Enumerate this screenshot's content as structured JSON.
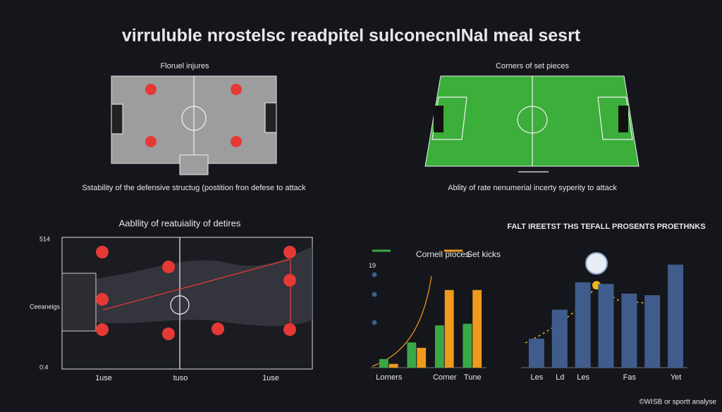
{
  "title": "virruluble nrostelsc readpitel sulconecnINal meal sesrt",
  "pitch_left": {
    "title": "Floruel injures",
    "caption": "Sstability of the defensive structug (postition fron defese to attack"
  },
  "pitch_right": {
    "title": "Corners of set pieces",
    "caption": "Ablity of rate nenumerial incerty syperity to attack"
  },
  "field_panel": {
    "title": "Aabllity of reatuiality of detires",
    "y_top": "514",
    "y_mid": "Ceeaneigs",
    "y_bottom": "0:4",
    "x_labels": [
      "1use",
      "tuso",
      "1use"
    ]
  },
  "chart_data": [
    {
      "type": "bar",
      "categories": [
        "Lorners",
        null,
        "Corner",
        "Tune"
      ],
      "series": [
        {
          "name": "Cornell ploces",
          "color": "#3aa845",
          "values": [
            1.6,
            4.7,
            7.9,
            8.2
          ]
        },
        {
          "name": "Set kicks",
          "color": "#f09a1c",
          "values": [
            0.7,
            3.7,
            14.5,
            14.5
          ]
        }
      ],
      "ylim": [
        0,
        20
      ],
      "yticks": [
        19
      ]
    },
    {
      "type": "bar",
      "title": "FALT IREETST THS TEFALL PROSENTS PROETHNKS",
      "categories": [
        "Les",
        "Ld",
        "Les",
        null,
        "Fas",
        null,
        "Yet"
      ],
      "values": [
        36,
        72,
        106,
        104,
        92,
        90,
        128
      ],
      "color": "#3f5c8c",
      "ylim": [
        0,
        140
      ]
    }
  ],
  "footer": "©WISB or sportt analyse"
}
